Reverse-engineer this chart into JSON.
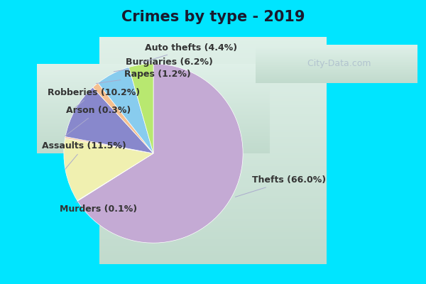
{
  "title": "Crimes by type - 2019",
  "slices": [
    {
      "label": "Thefts",
      "pct": 66.0,
      "color": "#c4aad4"
    },
    {
      "label": "Murders",
      "pct": 0.1,
      "color": "#f0f0b0"
    },
    {
      "label": "Assaults",
      "pct": 11.5,
      "color": "#f0f0b0"
    },
    {
      "label": "Arson",
      "pct": 0.3,
      "color": "#f5c8a0"
    },
    {
      "label": "Robberies",
      "pct": 10.2,
      "color": "#8888cc"
    },
    {
      "label": "Rapes",
      "pct": 1.2,
      "color": "#f5c090"
    },
    {
      "label": "Burglaries",
      "pct": 6.2,
      "color": "#88ccee"
    },
    {
      "label": "Auto thefts",
      "pct": 4.4,
      "color": "#b8e870"
    }
  ],
  "bg_outer": "#00e5ff",
  "title_fontsize": 15,
  "label_fontsize": 9,
  "watermark": "  City-Data.com",
  "bg_grad_top": "#dff0e8",
  "bg_grad_bottom": "#c8e0d0"
}
